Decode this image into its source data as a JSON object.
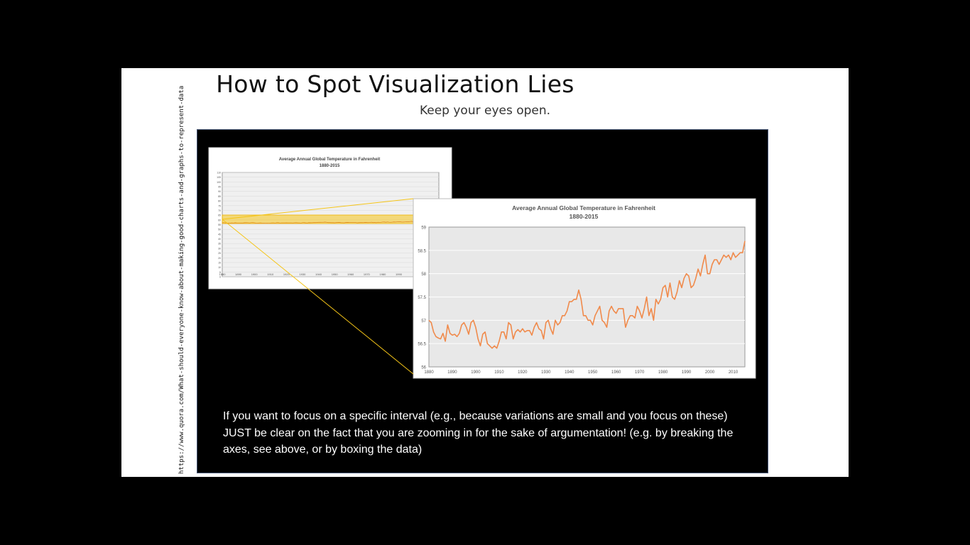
{
  "slide": {
    "title": "How to Spot Visualization Lies",
    "subtitle": "Keep your eyes open.",
    "source": "https://www.quora.com/What-should-everyone-know-about-making-good-charts-and-graphs-to-represent-data",
    "caption": "If you want to focus on a specific interval (e.g., because variations are small and you focus on these) JUST be clear on the fact that you are zooming in for the sake of argumentation! (e.g. by breaking the axes, see above, or by boxing the data)"
  },
  "colors": {
    "series": "#f08a4b",
    "highlight": "#f5c518",
    "panel": "#000000"
  },
  "chart_data": [
    {
      "type": "line",
      "title": "Average Annual Global Temperature in Fahrenheit",
      "subtitle": "1880-2015",
      "xlim": [
        1880,
        2015
      ],
      "ylim": [
        0,
        110
      ],
      "x_ticks": [
        "1880",
        "1890",
        "1900",
        "1910",
        "1920",
        "1930",
        "1940",
        "1950",
        "1960",
        "1970",
        "1980",
        "1990"
      ],
      "y_ticks": [
        "0",
        "5",
        "10",
        "15",
        "20",
        "25",
        "30",
        "35",
        "40",
        "45",
        "50",
        "55",
        "60",
        "65",
        "70",
        "75",
        "80",
        "85",
        "90",
        "95",
        "100",
        "105",
        "110"
      ]
    },
    {
      "type": "line",
      "title": "Average Annual Global Temperature in Fahrenheit",
      "subtitle": "1880-2015",
      "xlim": [
        1880,
        2015
      ],
      "ylim": [
        56,
        59
      ],
      "x_ticks": [
        "1880",
        "1890",
        "1900",
        "1910",
        "1920",
        "1930",
        "1940",
        "1950",
        "1960",
        "1970",
        "1980",
        "1990",
        "2000",
        "2010"
      ],
      "y_ticks": [
        "56",
        "56.5",
        "57",
        "57.5",
        "58",
        "58.5",
        "59"
      ],
      "series": [
        {
          "x": [
            1880,
            1881,
            1882,
            1883,
            1884,
            1885,
            1886,
            1887,
            1888,
            1889,
            1890,
            1891,
            1892,
            1893,
            1894,
            1895,
            1896,
            1897,
            1898,
            1899,
            1900,
            1901,
            1902,
            1903,
            1904,
            1905,
            1906,
            1907,
            1908,
            1909,
            1910,
            1911,
            1912,
            1913,
            1914,
            1915,
            1916,
            1917,
            1918,
            1919,
            1920,
            1921,
            1922,
            1923,
            1924,
            1925,
            1926,
            1927,
            1928,
            1929,
            1930,
            1931,
            1932,
            1933,
            1934,
            1935,
            1936,
            1937,
            1938,
            1939,
            1940,
            1941,
            1942,
            1943,
            1944,
            1945,
            1946,
            1947,
            1948,
            1949,
            1950,
            1951,
            1952,
            1953,
            1954,
            1955,
            1956,
            1957,
            1958,
            1959,
            1960,
            1961,
            1962,
            1963,
            1964,
            1965,
            1966,
            1967,
            1968,
            1969,
            1970,
            1971,
            1972,
            1973,
            1974,
            1975,
            1976,
            1977,
            1978,
            1979,
            1980,
            1981,
            1982,
            1983,
            1984,
            1985,
            1986,
            1987,
            1988,
            1989,
            1990,
            1991,
            1992,
            1993,
            1994,
            1995,
            1996,
            1997,
            1998,
            1999,
            2000,
            2001,
            2002,
            2003,
            2004,
            2005,
            2006,
            2007,
            2008,
            2009,
            2010,
            2011,
            2012,
            2013,
            2014,
            2015
          ],
          "values": [
            57.0,
            56.95,
            56.75,
            56.65,
            56.62,
            56.6,
            56.72,
            56.55,
            56.9,
            56.72,
            56.68,
            56.7,
            56.65,
            56.72,
            56.9,
            56.95,
            56.85,
            56.7,
            56.95,
            57.0,
            56.85,
            56.6,
            56.45,
            56.7,
            56.75,
            56.5,
            56.45,
            56.4,
            56.45,
            56.4,
            56.55,
            56.75,
            56.75,
            56.6,
            56.95,
            56.9,
            56.6,
            56.75,
            56.8,
            56.75,
            56.82,
            56.75,
            56.78,
            56.78,
            56.68,
            56.85,
            56.95,
            56.82,
            56.78,
            56.6,
            56.95,
            57.0,
            56.82,
            56.7,
            57.0,
            56.9,
            56.95,
            57.1,
            57.1,
            57.2,
            57.4,
            57.4,
            57.45,
            57.45,
            57.65,
            57.45,
            57.1,
            57.1,
            57.0,
            57.0,
            56.9,
            57.1,
            57.2,
            57.3,
            57.0,
            56.95,
            56.85,
            57.2,
            57.3,
            57.2,
            57.15,
            57.25,
            57.25,
            57.25,
            56.85,
            57.0,
            57.1,
            57.1,
            57.05,
            57.3,
            57.2,
            57.05,
            57.25,
            57.5,
            57.1,
            57.25,
            57.0,
            57.45,
            57.35,
            57.45,
            57.7,
            57.75,
            57.5,
            57.8,
            57.5,
            57.45,
            57.6,
            57.85,
            57.7,
            57.9,
            58.0,
            57.95,
            57.7,
            57.75,
            57.9,
            58.1,
            57.95,
            58.2,
            58.4,
            58.0,
            58.0,
            58.2,
            58.3,
            58.3,
            58.2,
            58.3,
            58.4,
            58.35,
            58.4,
            58.3,
            58.45,
            58.35,
            58.4,
            58.45,
            58.45,
            58.7
          ]
        }
      ]
    }
  ]
}
